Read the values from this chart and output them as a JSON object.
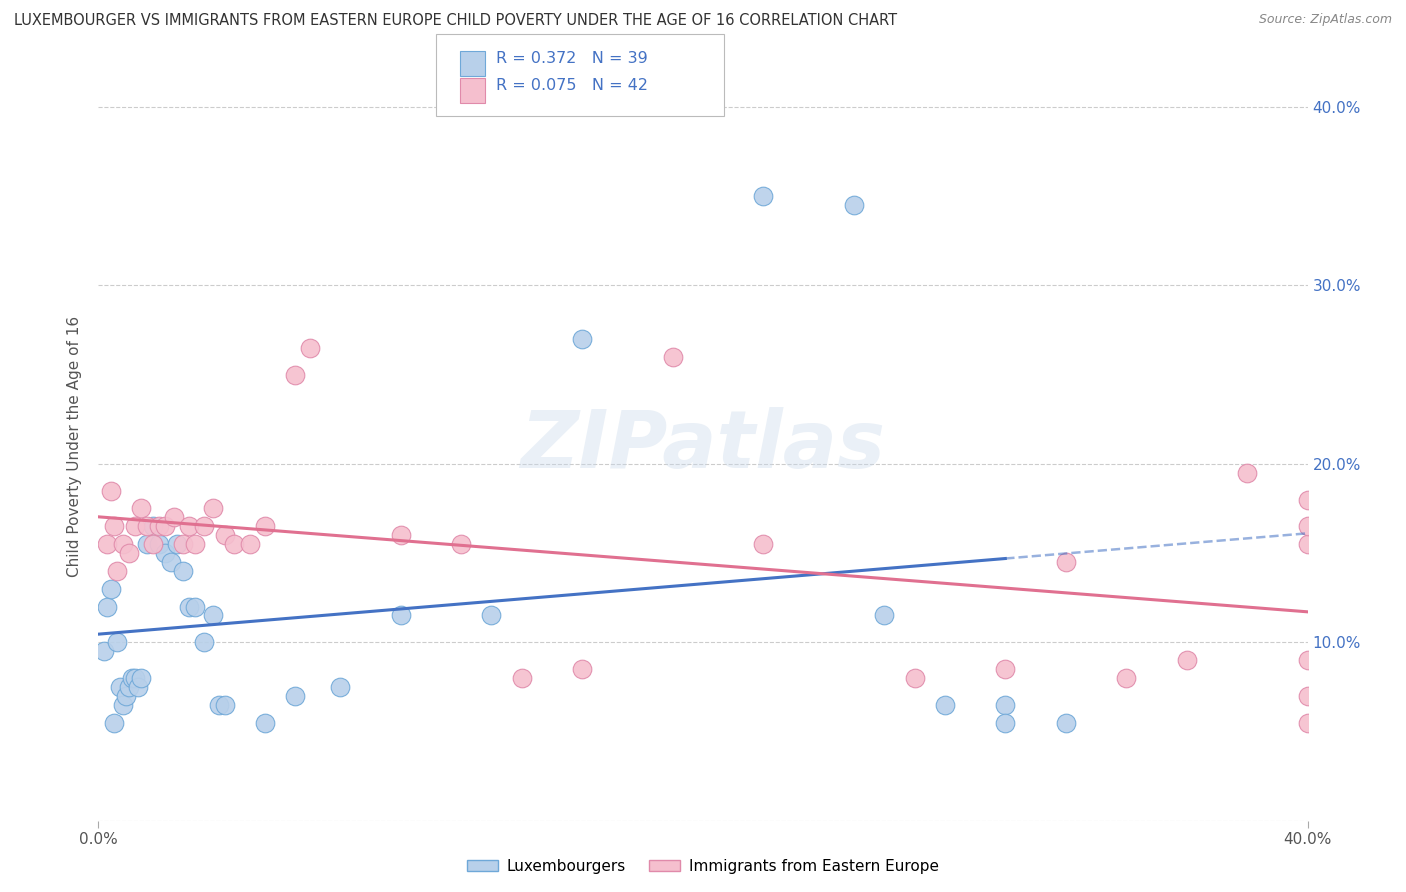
{
  "title": "LUXEMBOURGER VS IMMIGRANTS FROM EASTERN EUROPE CHILD POVERTY UNDER THE AGE OF 16 CORRELATION CHART",
  "source": "Source: ZipAtlas.com",
  "ylabel": "Child Poverty Under the Age of 16",
  "xlim": [
    0.0,
    0.4
  ],
  "ylim": [
    0.0,
    0.42
  ],
  "xtick_vals": [
    0.0,
    0.4
  ],
  "xtick_labels": [
    "0.0%",
    "40.0%"
  ],
  "ytick_vals_right": [
    0.1,
    0.2,
    0.3,
    0.4
  ],
  "ytick_labels_right": [
    "10.0%",
    "20.0%",
    "30.0%",
    "40.0%"
  ],
  "series1_color": "#b8d0ea",
  "series2_color": "#f5bfce",
  "series1_edge_color": "#6fa8d8",
  "series2_edge_color": "#e08aaa",
  "series1_line_color": "#4472C4",
  "series2_line_color": "#e07090",
  "series1_label": "Luxembourgers",
  "series2_label": "Immigrants from Eastern Europe",
  "R1": 0.372,
  "N1": 39,
  "R2": 0.075,
  "N2": 42,
  "background_color": "#ffffff",
  "grid_color": "#cccccc",
  "watermark": "ZIPatlas",
  "series1_x": [
    0.002,
    0.003,
    0.004,
    0.005,
    0.006,
    0.007,
    0.008,
    0.009,
    0.01,
    0.011,
    0.012,
    0.013,
    0.014,
    0.016,
    0.018,
    0.02,
    0.022,
    0.024,
    0.026,
    0.028,
    0.03,
    0.032,
    0.035,
    0.038,
    0.04,
    0.042,
    0.055,
    0.065,
    0.08,
    0.1,
    0.13,
    0.16,
    0.22,
    0.25,
    0.26,
    0.28,
    0.3,
    0.3,
    0.32
  ],
  "series1_y": [
    0.095,
    0.12,
    0.13,
    0.055,
    0.1,
    0.075,
    0.065,
    0.07,
    0.075,
    0.08,
    0.08,
    0.075,
    0.08,
    0.155,
    0.165,
    0.155,
    0.15,
    0.145,
    0.155,
    0.14,
    0.12,
    0.12,
    0.1,
    0.115,
    0.065,
    0.065,
    0.055,
    0.07,
    0.075,
    0.115,
    0.115,
    0.27,
    0.35,
    0.345,
    0.115,
    0.065,
    0.065,
    0.055,
    0.055
  ],
  "series2_x": [
    0.003,
    0.004,
    0.005,
    0.006,
    0.008,
    0.01,
    0.012,
    0.014,
    0.016,
    0.018,
    0.02,
    0.022,
    0.025,
    0.028,
    0.03,
    0.032,
    0.035,
    0.038,
    0.042,
    0.045,
    0.05,
    0.055,
    0.065,
    0.07,
    0.1,
    0.12,
    0.14,
    0.16,
    0.19,
    0.22,
    0.27,
    0.3,
    0.32,
    0.34,
    0.36,
    0.38,
    0.4,
    0.4,
    0.4,
    0.4,
    0.4,
    0.4
  ],
  "series2_y": [
    0.155,
    0.185,
    0.165,
    0.14,
    0.155,
    0.15,
    0.165,
    0.175,
    0.165,
    0.155,
    0.165,
    0.165,
    0.17,
    0.155,
    0.165,
    0.155,
    0.165,
    0.175,
    0.16,
    0.155,
    0.155,
    0.165,
    0.25,
    0.265,
    0.16,
    0.155,
    0.08,
    0.085,
    0.26,
    0.155,
    0.08,
    0.085,
    0.145,
    0.08,
    0.09,
    0.195,
    0.18,
    0.09,
    0.07,
    0.155,
    0.165,
    0.055
  ]
}
